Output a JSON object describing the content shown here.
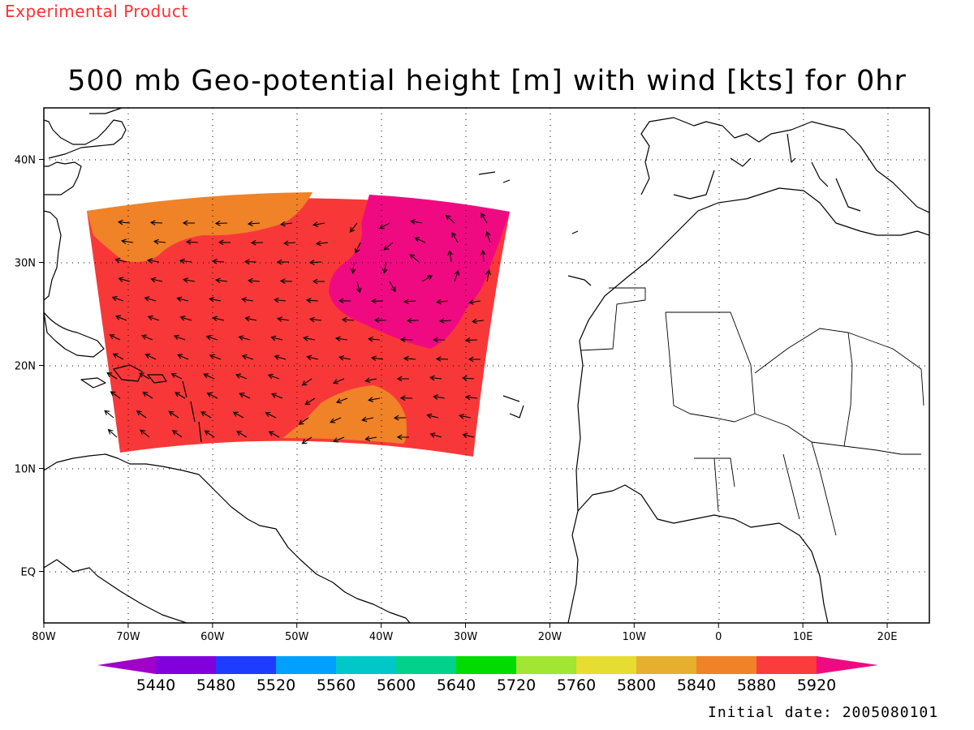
{
  "header": {
    "experimental_label": "Experimental Product",
    "title": "500 mb Geo-potential height [m] with wind [kts] for 0hr",
    "initial_date": "Initial date: 2005080101"
  },
  "map": {
    "lon_range": [
      -80,
      25
    ],
    "lat_range": [
      -5,
      45
    ],
    "grid": "dotted",
    "x_ticks": [
      "80W",
      "70W",
      "60W",
      "50W",
      "40W",
      "30W",
      "20W",
      "10W",
      "0",
      "10E",
      "20E"
    ],
    "y_ticks": [
      "EQ",
      "10N",
      "20N",
      "30N",
      "40N"
    ],
    "base_color": "#f83838",
    "region_colors": {
      "5840-5880": "#f08228",
      "5920+": "#f00a82"
    },
    "wind_arrow_color": "#000000"
  },
  "colorbar": {
    "labels": [
      "5440",
      "5480",
      "5520",
      "5560",
      "5600",
      "5640",
      "5720",
      "5760",
      "5800",
      "5840",
      "5880",
      "5920"
    ],
    "colors": [
      "#a000c8",
      "#8200dc",
      "#1e3cff",
      "#00a0ff",
      "#00c8c8",
      "#00d28c",
      "#00dc00",
      "#a0e632",
      "#e6dc32",
      "#e6af2d",
      "#f08228",
      "#fa3c3c",
      "#f00a82"
    ]
  }
}
